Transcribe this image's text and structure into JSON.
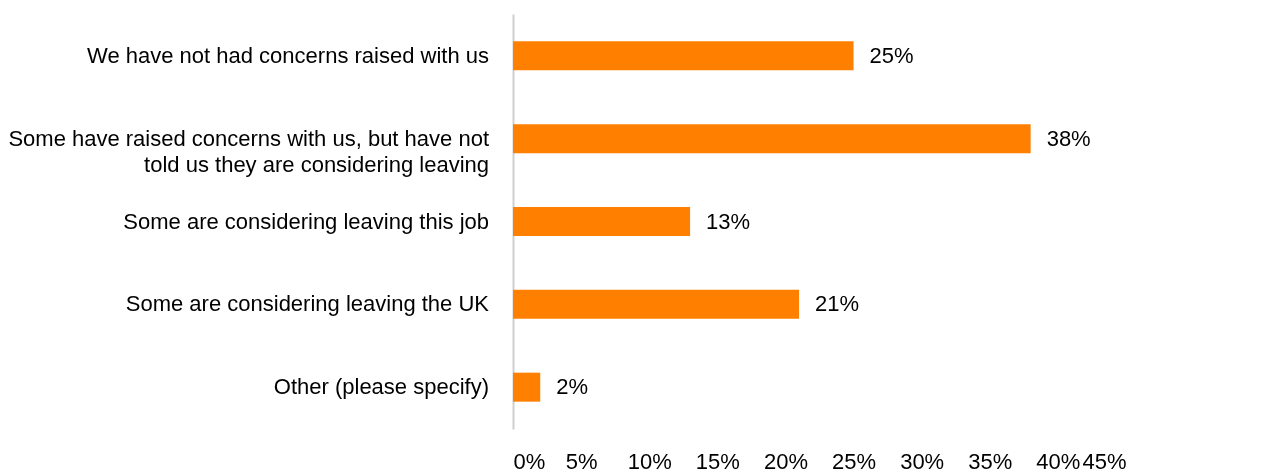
{
  "chart_data": {
    "type": "bar",
    "orientation": "horizontal",
    "categories": [
      "We have not had concerns raised with us",
      "Some have raised concerns with us, but have not told us they are considering leaving",
      "Some are considering leaving this job",
      "Some are considering leaving the UK",
      "Other (please specify)"
    ],
    "values": [
      25,
      38,
      13,
      21,
      2
    ],
    "color": "#ff7f00",
    "value_labels": [
      "25%",
      "38%",
      "13%",
      "21%",
      "2%"
    ],
    "xlim": [
      0,
      45
    ],
    "xticks": [
      {
        "value": 0,
        "label": "0%"
      },
      {
        "value": 5,
        "label": "5%"
      },
      {
        "value": 10,
        "label": "10%"
      },
      {
        "value": 15,
        "label": "15%"
      },
      {
        "value": 20,
        "label": "20%"
      },
      {
        "value": 25,
        "label": "25%"
      },
      {
        "value": 30,
        "label": "30%"
      },
      {
        "value": 35,
        "label": "35%"
      },
      {
        "value": 40,
        "label": "40%"
      },
      {
        "value": 45,
        "label": "45%"
      }
    ],
    "grid": false
  }
}
